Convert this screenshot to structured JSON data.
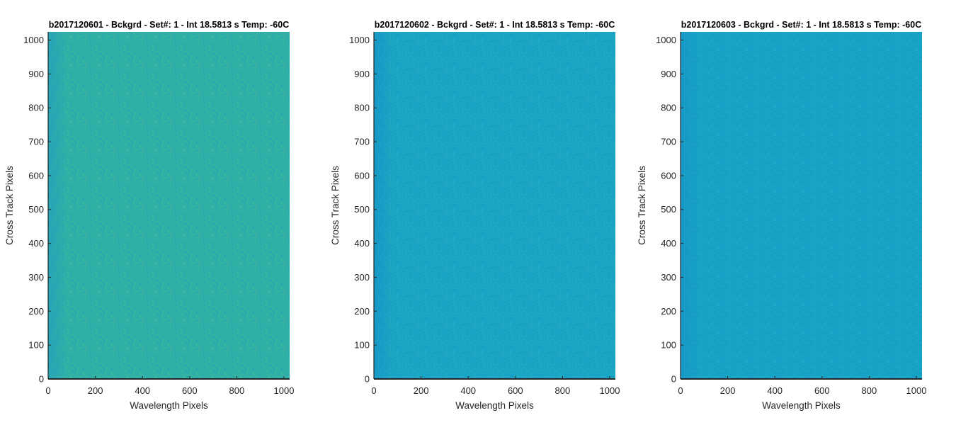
{
  "chart_data": [
    {
      "type": "heatmap",
      "title": "b2017120601 - Bckgrd - Set#: 1 - Int 18.5813 s Temp: -60C",
      "xlabel": "Wavelength Pixels",
      "ylabel": "Cross Track Pixels",
      "xlim": [
        0,
        1024
      ],
      "ylim": [
        0,
        1024
      ],
      "xticks": [
        0,
        200,
        400,
        600,
        800,
        1000
      ],
      "yticks": [
        0,
        100,
        200,
        300,
        400,
        500,
        600,
        700,
        800,
        900,
        1000
      ],
      "grid": false,
      "base_color": "#2fb0a6",
      "noise_color_light": "#5cc08a",
      "noise_color_dark": "#1f9dc0",
      "left_edge_color": "#1f9ac4"
    },
    {
      "type": "heatmap",
      "title": "b2017120602 - Bckgrd - Set#: 1 - Int 18.5813 s Temp: -60C",
      "xlabel": "Wavelength Pixels",
      "ylabel": "Cross Track Pixels",
      "xlim": [
        0,
        1024
      ],
      "ylim": [
        0,
        1024
      ],
      "xticks": [
        0,
        200,
        400,
        600,
        800,
        1000
      ],
      "yticks": [
        0,
        100,
        200,
        300,
        400,
        500,
        600,
        700,
        800,
        900,
        1000
      ],
      "grid": false,
      "base_color": "#1aa5c4",
      "noise_color_light": "#33b4b6",
      "noise_color_dark": "#1392c8",
      "left_edge_color": "#1590c8"
    },
    {
      "type": "heatmap",
      "title": "b2017120603 - Bckgrd - Set#: 1 - Int 18.5813 s Temp: -60C",
      "xlabel": "Wavelength Pixels",
      "ylabel": "Cross Track Pixels",
      "xlim": [
        0,
        1024
      ],
      "ylim": [
        0,
        1024
      ],
      "xticks": [
        0,
        200,
        400,
        600,
        800,
        1000
      ],
      "yticks": [
        0,
        100,
        200,
        300,
        400,
        500,
        600,
        700,
        800,
        900,
        1000
      ],
      "grid": false,
      "base_color": "#17a3c6",
      "noise_color_light": "#2fb0b8",
      "noise_color_dark": "#1290c8",
      "left_edge_color": "#1590c8"
    }
  ]
}
